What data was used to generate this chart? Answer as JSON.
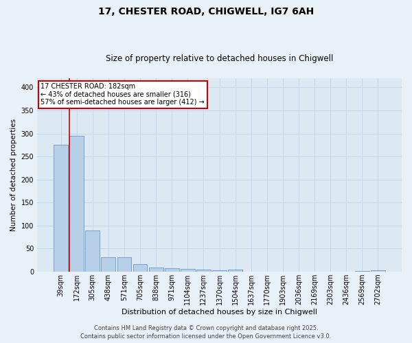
{
  "title1": "17, CHESTER ROAD, CHIGWELL, IG7 6AH",
  "title2": "Size of property relative to detached houses in Chigwell",
  "xlabel": "Distribution of detached houses by size in Chigwell",
  "ylabel": "Number of detached properties",
  "bar_labels": [
    "39sqm",
    "172sqm",
    "305sqm",
    "438sqm",
    "571sqm",
    "705sqm",
    "838sqm",
    "971sqm",
    "1104sqm",
    "1237sqm",
    "1370sqm",
    "1504sqm",
    "1637sqm",
    "1770sqm",
    "1903sqm",
    "2036sqm",
    "2169sqm",
    "2303sqm",
    "2436sqm",
    "2569sqm",
    "2702sqm"
  ],
  "bar_values": [
    275,
    295,
    90,
    32,
    32,
    17,
    9,
    7,
    6,
    4,
    3,
    5,
    0,
    0,
    0,
    0,
    0,
    0,
    0,
    2,
    3
  ],
  "bar_color": "#b8cfe8",
  "bar_edge_color": "#6699cc",
  "red_line_x": 1,
  "annotation_text": "17 CHESTER ROAD: 182sqm\n← 43% of detached houses are smaller (316)\n57% of semi-detached houses are larger (412) →",
  "annotation_box_edge_color": "#cc0000",
  "ylim": [
    0,
    420
  ],
  "yticks": [
    0,
    50,
    100,
    150,
    200,
    250,
    300,
    350,
    400
  ],
  "grid_color": "#c5d8ea",
  "bg_color": "#dce8f2",
  "fig_color": "#e8f0f8",
  "footer1": "Contains HM Land Registry data © Crown copyright and database right 2025.",
  "footer2": "Contains public sector information licensed under the Open Government Licence v3.0.",
  "title1_fontsize": 10,
  "title2_fontsize": 8.5,
  "xlabel_fontsize": 8,
  "ylabel_fontsize": 7.5,
  "tick_fontsize": 7,
  "annotation_fontsize": 7,
  "footer_fontsize": 6
}
